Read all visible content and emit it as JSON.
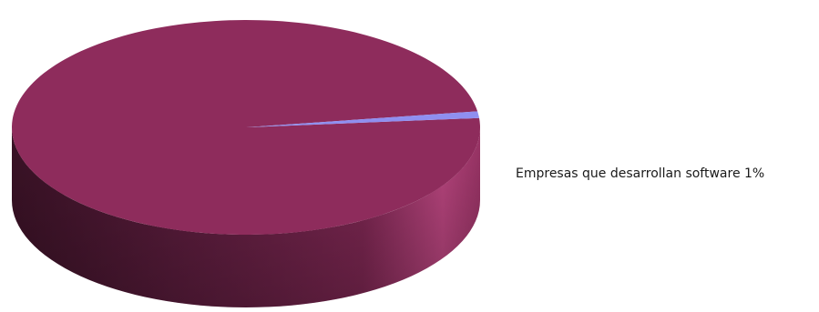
{
  "chart_data": {
    "type": "pie",
    "style": "3d",
    "slices": [
      {
        "label": "",
        "value": 99,
        "color": "#8e2c5c"
      },
      {
        "label": "Empresas que desarrollan software 1%",
        "value": 1,
        "color": "#8f8ff0"
      }
    ],
    "labels_shown": [
      "Empresas que desarrollan software 1%"
    ]
  }
}
